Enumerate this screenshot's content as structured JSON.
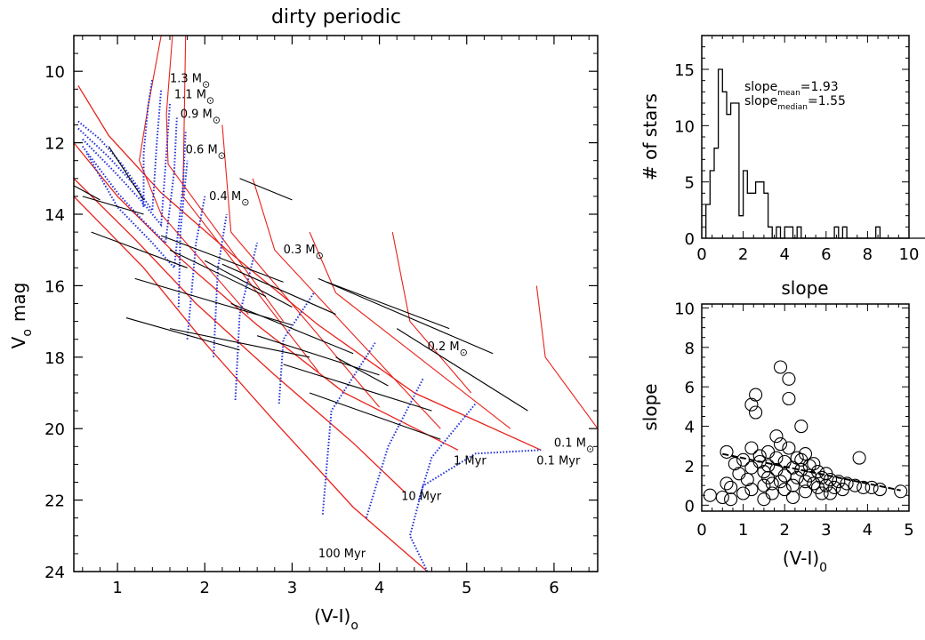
{
  "chart_data": [
    {
      "type": "line",
      "title": "dirty periodic",
      "xlabel": "(V-I)",
      "xlabel_sub": "o",
      "ylabel": "V",
      "ylabel_sub": "o",
      "ylabel_tail": "mag",
      "xlim": [
        0.5,
        6.5
      ],
      "ylim": [
        24,
        9
      ],
      "y_inverted": true,
      "xticks": [
        1,
        2,
        3,
        4,
        5,
        6
      ],
      "yticks": [
        10,
        12,
        14,
        16,
        18,
        20,
        22,
        24
      ],
      "mass_labels": [
        {
          "text": "1.3 M",
          "sym": "⊙",
          "x": 1.6,
          "y": 10.3
        },
        {
          "text": "1.1 M",
          "sym": "⊙",
          "x": 1.65,
          "y": 10.75
        },
        {
          "text": "0.9 M",
          "sym": "⊙",
          "x": 1.72,
          "y": 11.3
        },
        {
          "text": "0.6 M",
          "sym": "⊙",
          "x": 1.78,
          "y": 12.3
        },
        {
          "text": "0.4 M",
          "sym": "⊙",
          "x": 2.05,
          "y": 13.6
        },
        {
          "text": "0.3 M",
          "sym": "⊙",
          "x": 2.9,
          "y": 15.1
        },
        {
          "text": "0.2 M",
          "sym": "⊙",
          "x": 4.55,
          "y": 17.8
        },
        {
          "text": "0.1 M",
          "sym": "⊙",
          "x": 6.0,
          "y": 20.5
        }
      ],
      "age_labels": [
        {
          "text": "0.1 Myr",
          "x": 5.8,
          "y": 21.0
        },
        {
          "text": "1 Myr",
          "x": 4.85,
          "y": 21.0
        },
        {
          "text": "10 Myr",
          "x": 4.25,
          "y": 22.0
        },
        {
          "text": "100 Myr",
          "x": 3.3,
          "y": 23.6
        }
      ],
      "isochrones": [
        {
          "name": "0.1 Myr",
          "x": [
            0.55,
            0.9,
            1.5,
            2.3,
            3.3,
            4.4,
            5.85
          ],
          "y": [
            10.4,
            11.8,
            13.4,
            15.1,
            17.1,
            19.0,
            20.6
          ]
        },
        {
          "name": "1 Myr",
          "x": [
            0.5,
            1.0,
            1.7,
            2.6,
            3.6,
            4.9
          ],
          "y": [
            12.0,
            13.5,
            15.2,
            17.1,
            19.0,
            20.6
          ]
        },
        {
          "name": "10 Myr",
          "x": [
            0.5,
            1.2,
            1.9,
            2.8,
            3.7,
            4.3
          ],
          "y": [
            13.0,
            14.7,
            16.5,
            18.5,
            20.4,
            21.8
          ]
        },
        {
          "name": "100 Myr",
          "x": [
            0.5,
            1.3,
            2.0,
            2.8,
            3.7,
            4.55
          ],
          "y": [
            13.5,
            15.5,
            17.6,
            19.8,
            22.2,
            24.0
          ]
        }
      ],
      "mass_tracks": [
        {
          "x": [
            1.5,
            1.35,
            1.25,
            1.5,
            2.5
          ],
          "y": [
            9.0,
            11.0,
            12.5,
            14.0,
            16.8
          ]
        },
        {
          "x": [
            1.63,
            1.56,
            1.58,
            2.9
          ],
          "y": [
            9.0,
            11.2,
            12.6,
            17.0
          ]
        },
        {
          "x": [
            1.78,
            1.75,
            3.3
          ],
          "y": [
            9.0,
            13.5,
            18.4
          ]
        },
        {
          "x": [
            2.2,
            2.3,
            4.0
          ],
          "y": [
            11.5,
            14.5,
            19.4
          ]
        },
        {
          "x": [
            2.55,
            2.8,
            4.7
          ],
          "y": [
            13.0,
            15.0,
            20.0
          ]
        },
        {
          "x": [
            3.2,
            3.5,
            5.5
          ],
          "y": [
            14.5,
            16.2,
            20.0
          ]
        },
        {
          "x": [
            4.15,
            4.35,
            5.05
          ],
          "y": [
            14.5,
            17.0,
            19.0
          ]
        },
        {
          "x": [
            5.8,
            5.9,
            6.5
          ],
          "y": [
            16.0,
            18.0,
            20.0
          ]
        }
      ],
      "blue_tracks": [
        {
          "x": [
            0.55,
            0.8,
            1.05,
            1.25,
            1.3,
            1.3,
            1.35,
            1.4
          ],
          "y": [
            11.4,
            11.9,
            12.6,
            13.3,
            13.8,
            12.3,
            11.0,
            10.2
          ]
        },
        {
          "x": [
            0.55,
            0.9,
            1.2,
            1.4,
            1.45,
            1.5
          ],
          "y": [
            11.6,
            12.4,
            13.2,
            13.9,
            12.0,
            10.5
          ]
        },
        {
          "x": [
            0.6,
            1.0,
            1.3,
            1.5,
            1.56,
            1.6
          ],
          "y": [
            11.9,
            12.9,
            13.7,
            14.3,
            12.3,
            10.9
          ]
        },
        {
          "x": [
            0.6,
            1.0,
            1.3,
            1.55,
            1.65,
            1.68
          ],
          "y": [
            12.1,
            13.4,
            14.2,
            14.8,
            12.8,
            11.3
          ]
        },
        {
          "x": [
            0.65,
            1.0,
            1.4,
            1.65,
            1.75,
            1.78
          ],
          "y": [
            12.3,
            13.8,
            14.8,
            15.5,
            13.2,
            11.7
          ]
        },
        {
          "x": [
            1.7,
            1.72,
            1.8
          ],
          "y": [
            16.6,
            14.5,
            12.5
          ]
        },
        {
          "x": [
            1.8,
            1.9,
            2.0
          ],
          "y": [
            17.5,
            14.8,
            13.5
          ]
        },
        {
          "x": [
            2.1,
            2.15,
            2.25
          ],
          "y": [
            18.0,
            15.5,
            14.0
          ]
        },
        {
          "x": [
            2.35,
            2.4,
            2.6
          ],
          "y": [
            19.2,
            16.8,
            14.8
          ]
        },
        {
          "x": [
            2.85,
            2.9,
            3.25
          ],
          "y": [
            19.3,
            17.5,
            16.2
          ]
        },
        {
          "x": [
            3.35,
            3.45,
            3.95
          ],
          "y": [
            22.4,
            19.5,
            17.6
          ]
        },
        {
          "x": [
            3.85,
            4.1,
            4.5
          ],
          "y": [
            22.5,
            20.5,
            18.6
          ]
        },
        {
          "x": [
            4.45,
            4.6,
            5.1
          ],
          "y": [
            22.0,
            20.8,
            19.3
          ]
        },
        {
          "x": [
            4.55,
            4.35,
            4.5,
            5.1,
            5.85
          ],
          "y": [
            24.0,
            23.0,
            21.6,
            20.7,
            20.6
          ]
        }
      ],
      "star_segments": [
        [
          0.5,
          13.2,
          0.8,
          13.6
        ],
        [
          0.6,
          13.5,
          1.3,
          14.0
        ],
        [
          0.7,
          14.5,
          1.8,
          15.5
        ],
        [
          1.2,
          15.8,
          3.0,
          17.1
        ],
        [
          1.1,
          16.9,
          2.4,
          17.8
        ],
        [
          1.6,
          17.2,
          3.2,
          18.0
        ],
        [
          2.2,
          15.4,
          3.5,
          16.8
        ],
        [
          2.3,
          16.5,
          3.7,
          17.9
        ],
        [
          2.6,
          17.4,
          4.0,
          18.5
        ],
        [
          2.9,
          18.2,
          4.6,
          19.5
        ],
        [
          3.2,
          19.0,
          4.7,
          20.3
        ],
        [
          3.3,
          15.8,
          5.3,
          17.9
        ],
        [
          3.4,
          15.9,
          4.8,
          17.2
        ],
        [
          4.2,
          17.2,
          5.7,
          19.5
        ],
        [
          0.9,
          12.1,
          1.3,
          13.6
        ],
        [
          1.5,
          14.6,
          2.9,
          15.9
        ],
        [
          1.6,
          15.0,
          2.7,
          16.3
        ],
        [
          2.0,
          15.3,
          3.0,
          16.6
        ],
        [
          3.5,
          18.0,
          4.1,
          18.8
        ],
        [
          2.4,
          13.0,
          3.0,
          13.6
        ]
      ]
    },
    {
      "type": "bar",
      "ylabel": "# of stars",
      "xlabel": "slope",
      "xlim": [
        0,
        10
      ],
      "ylim": [
        0,
        18
      ],
      "xticks": [
        0,
        2,
        4,
        6,
        8,
        10
      ],
      "yticks": [
        0,
        5,
        10,
        15
      ],
      "bin_width": 0.2,
      "bin_start": 0.2,
      "values": [
        3,
        6,
        8,
        15,
        13,
        11,
        12,
        12,
        2,
        6,
        4,
        4,
        5,
        5,
        4,
        1,
        0,
        1,
        0,
        1,
        1,
        0,
        1,
        0,
        0,
        0,
        0,
        0,
        0,
        0,
        0,
        1,
        0,
        1,
        0,
        0,
        0,
        0,
        0,
        0,
        0,
        1,
        0,
        0,
        0,
        0,
        0,
        0,
        0,
        0,
        0,
        0,
        0
      ],
      "annotations": [
        {
          "base": "slope",
          "sub": "mean",
          "value": "=1.93"
        },
        {
          "base": "slope",
          "sub": "median",
          "value": "=1.55"
        }
      ]
    },
    {
      "type": "scatter",
      "ylabel": "slope",
      "xlabel": "(V-I)",
      "xlabel_sub": "0",
      "xlim": [
        0,
        5
      ],
      "ylim": [
        -0.3,
        10.2
      ],
      "xticks": [
        0,
        1,
        2,
        3,
        4,
        5
      ],
      "yticks": [
        0,
        2,
        4,
        6,
        8,
        10
      ],
      "fit_line": {
        "x": [
          0.5,
          4.8
        ],
        "y": [
          2.6,
          0.75
        ]
      },
      "points": [
        [
          0.2,
          0.5
        ],
        [
          0.5,
          0.4
        ],
        [
          0.6,
          1.1
        ],
        [
          0.6,
          2.7
        ],
        [
          0.7,
          0.9
        ],
        [
          0.8,
          2.1
        ],
        [
          0.9,
          1.6
        ],
        [
          1.0,
          0.6
        ],
        [
          1.1,
          1.3
        ],
        [
          1.2,
          0.8
        ],
        [
          1.2,
          1.9
        ],
        [
          1.2,
          2.9
        ],
        [
          1.2,
          5.1
        ],
        [
          1.3,
          5.6
        ],
        [
          1.3,
          4.7
        ],
        [
          1.4,
          2.5
        ],
        [
          1.5,
          1.0
        ],
        [
          1.5,
          0.3
        ],
        [
          1.6,
          1.4
        ],
        [
          1.6,
          2.0
        ],
        [
          1.6,
          2.7
        ],
        [
          1.7,
          1.1
        ],
        [
          1.7,
          0.6
        ],
        [
          1.8,
          1.8
        ],
        [
          1.8,
          2.4
        ],
        [
          1.9,
          3.1
        ],
        [
          1.9,
          7.0
        ],
        [
          1.9,
          1.2
        ],
        [
          2.0,
          2.2
        ],
        [
          2.0,
          0.8
        ],
        [
          2.0,
          1.5
        ],
        [
          2.1,
          6.4
        ],
        [
          2.1,
          2.9
        ],
        [
          2.1,
          5.4
        ],
        [
          2.2,
          1.9
        ],
        [
          2.2,
          1.0
        ],
        [
          2.3,
          2.4
        ],
        [
          2.3,
          1.4
        ],
        [
          2.4,
          4.0
        ],
        [
          2.4,
          1.8
        ],
        [
          2.5,
          1.2
        ],
        [
          2.5,
          2.6
        ],
        [
          2.5,
          0.7
        ],
        [
          2.6,
          1.5
        ],
        [
          2.6,
          2.0
        ],
        [
          2.7,
          1.1
        ],
        [
          2.8,
          1.7
        ],
        [
          2.8,
          0.9
        ],
        [
          2.9,
          1.4
        ],
        [
          3.0,
          1.0
        ],
        [
          3.1,
          1.3
        ],
        [
          3.1,
          0.6
        ],
        [
          3.2,
          0.9
        ],
        [
          3.3,
          1.2
        ],
        [
          3.4,
          0.8
        ],
        [
          3.5,
          1.1
        ],
        [
          3.7,
          1.0
        ],
        [
          3.8,
          2.4
        ],
        [
          3.9,
          0.9
        ],
        [
          4.1,
          0.9
        ],
        [
          4.3,
          0.8
        ],
        [
          4.8,
          0.7
        ],
        [
          1.0,
          2.3
        ],
        [
          1.4,
          2.2
        ],
        [
          2.4,
          2.3
        ],
        [
          2.7,
          2.1
        ],
        [
          3.0,
          1.6
        ],
        [
          1.8,
          3.5
        ],
        [
          2.2,
          0.4
        ],
        [
          0.7,
          0.3
        ],
        [
          1.5,
          1.7
        ],
        [
          2.9,
          0.6
        ]
      ]
    }
  ]
}
